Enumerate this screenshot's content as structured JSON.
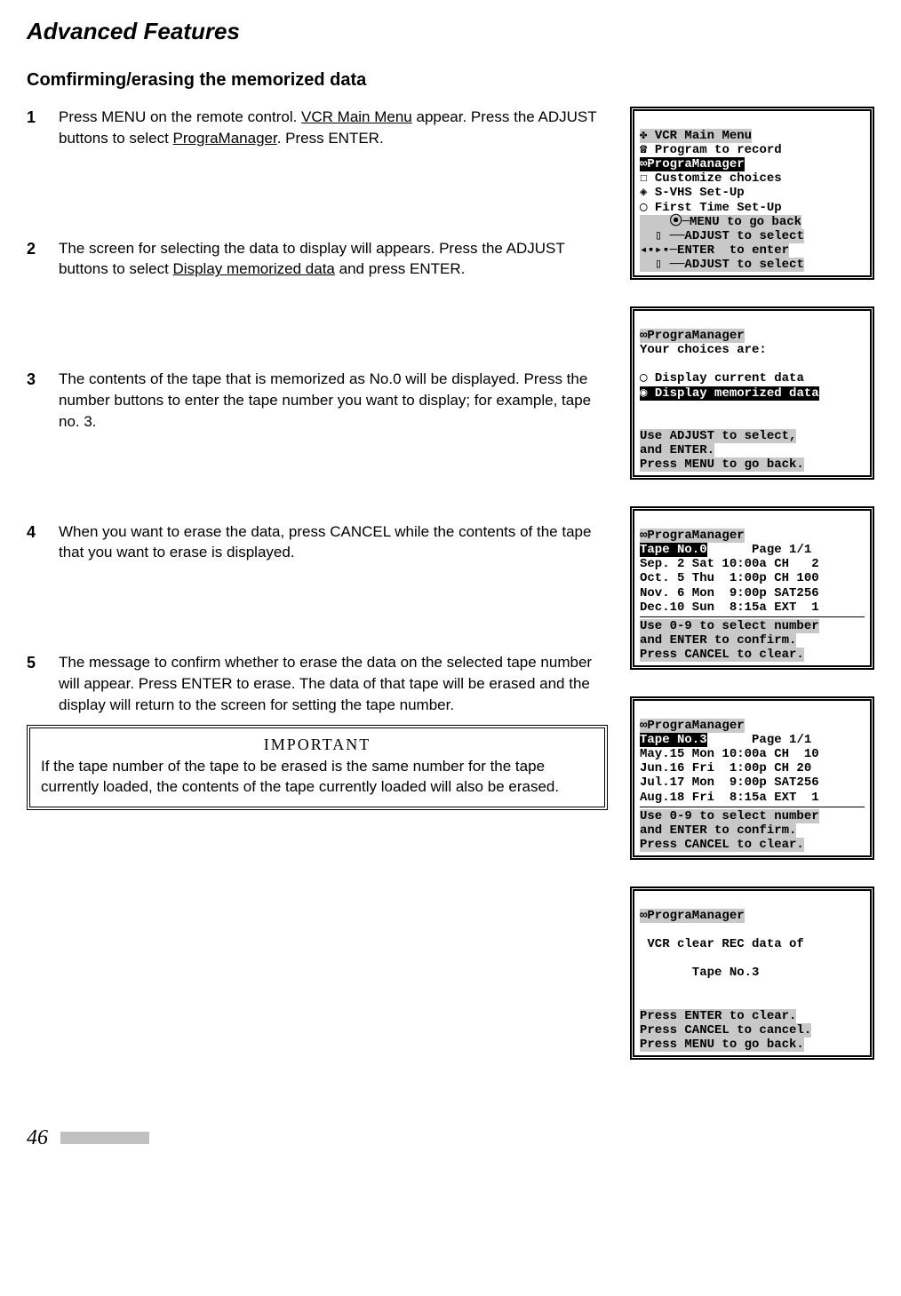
{
  "title": "Advanced Features",
  "subtitle": "Comfirming/erasing the memorized data",
  "steps": {
    "s1": {
      "num": "1",
      "pre": "Press MENU on the remote control. ",
      "u1": "VCR Main Menu",
      "mid": " appear. Press the ADJUST buttons to select ",
      "u2": "PrograManager",
      "post": ". Press ENTER."
    },
    "s2": {
      "num": "2",
      "pre": "The screen for selecting the data to display will appears. Press the ADJUST buttons to select ",
      "u1": "Display memorized data",
      "post": " and press ENTER."
    },
    "s3": {
      "num": "3",
      "text": "The contents of the tape that is memorized as No.0 will be displayed. Press the number buttons to enter the tape number you want to display; for example, tape no. 3."
    },
    "s4": {
      "num": "4",
      "text": "When you want to erase the data, press CANCEL while the contents of the tape that you want to erase is displayed."
    },
    "s5": {
      "num": "5",
      "text": "The message to confirm whether to erase the data on the selected tape number will appear. Press ENTER to erase. The data of that tape will be erased and the display will return to the screen for setting the tape number."
    }
  },
  "important": {
    "heading": "IMPORTANT",
    "text": "If the tape number of the tape to be erased is the same number for the tape currently loaded, the contents of the tape currently loaded will also be erased."
  },
  "screens": {
    "sc1": {
      "l1": "✤ VCR Main Menu",
      "l2": "☎ Program to record",
      "l3": "∞PrograManager",
      "l4": "☐ Customize choices",
      "l5": "◈ S-VHS Set-Up",
      "l6": "◯ First Time Set-Up",
      "l7": "    ⦿─MENU to go back",
      "l8": "  ▯ ──ADJUST to select",
      "l9": "◂▪▸▪─ENTER  to enter",
      "l10": "  ▯ ──ADJUST to select"
    },
    "sc2": {
      "l1": "∞PrograManager",
      "l2": "Your choices are:",
      "l3": "",
      "l4": "◯ Display current data",
      "l5": "◉ Display memorized data",
      "l6": "",
      "l7": "",
      "l8": "Use ADJUST to select,",
      "l9": "and ENTER.",
      "l10": "Press MENU to go back."
    },
    "sc3": {
      "l1": "∞PrograManager",
      "l2a": "Tape No.0",
      "l2b": "      Page 1/1",
      "l3": "Sep. 2 Sat 10:00a CH   2",
      "l4": "Oct. 5 Thu  1:00p CH 100",
      "l5": "Nov. 6 Mon  9:00p SAT256",
      "l6": "Dec.10 Sun  8:15a EXT  1",
      "l7": "Use 0-9 to select number",
      "l8": "and ENTER to confirm.",
      "l9": "Press CANCEL to clear."
    },
    "sc4": {
      "l1": "∞PrograManager",
      "l2a": "Tape No.3",
      "l2b": "      Page 1/1",
      "l3": "May.15 Mon 10:00a CH  10",
      "l4": "Jun.16 Fri  1:00p CH 20",
      "l5": "Jul.17 Mon  9:00p SAT256",
      "l6": "Aug.18 Fri  8:15a EXT  1",
      "l7": "Use 0-9 to select number",
      "l8": "and ENTER to confirm.",
      "l9": "Press CANCEL to clear."
    },
    "sc5": {
      "l1": "∞PrograManager",
      "l2": "",
      "l3": " VCR clear REC data of",
      "l4": "",
      "l5": "       Tape No.3",
      "l6": "",
      "l7": "",
      "l8": "Press ENTER to clear.",
      "l9": "Press CANCEL to cancel.",
      "l10": "Press MENU to go back."
    }
  },
  "page": "46"
}
